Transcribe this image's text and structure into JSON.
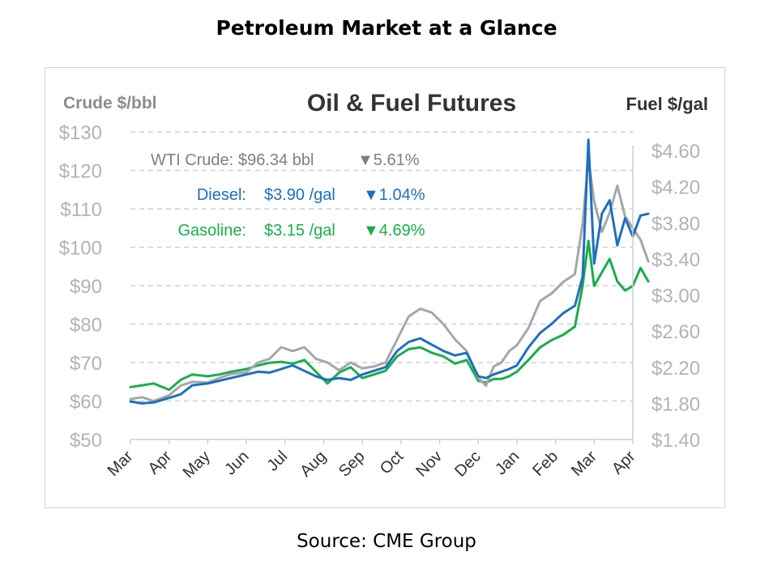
{
  "page_title": "Petroleum Market at a Glance",
  "source": "Source: CME Group",
  "colors": {
    "crude": "#a6a6a6",
    "diesel": "#1f6fbf",
    "gasoline": "#1aad4b",
    "grid": "#cfcfcf",
    "axis_text": "#b3b3b3",
    "left_label": "#8c8c8c",
    "title": "#333333"
  },
  "chart_data": {
    "type": "line",
    "title": "Oil & Fuel Futures",
    "ylabel_left": "Crude $/bbl",
    "ylabel_right": "Fuel $/gal",
    "x_ticks": [
      "Mar",
      "Apr",
      "May",
      "Jun",
      "Jul",
      "Aug",
      "Sep",
      "Oct",
      "Nov",
      "Dec",
      "Jan",
      "Feb",
      "Mar",
      "Apr"
    ],
    "y_left_ticks": [
      "$130",
      "$120",
      "$110",
      "$100",
      "$90",
      "$80",
      "$70",
      "$60",
      "$50"
    ],
    "y_right_ticks": [
      "$4.60",
      "$4.20",
      "$3.80",
      "$3.40",
      "$3.00",
      "$2.60",
      "$2.20",
      "$1.80",
      "$1.40"
    ],
    "ylim_left": [
      50,
      130
    ],
    "ylim_right": [
      1.4,
      4.6
    ],
    "grid": "horizontal-dashed",
    "annotations": [
      {
        "series": "crude",
        "label": "WTI Crude:",
        "value": "$96.34 bbl",
        "change": "▼5.61%"
      },
      {
        "series": "diesel",
        "label": "Diesel:",
        "value": "$3.90 /gal",
        "change": "▼1.04%"
      },
      {
        "series": "gasoline",
        "label": "Gasoline:",
        "value": "$3.15 /gal",
        "change": "▼4.69%"
      }
    ],
    "series": [
      {
        "key": "crude",
        "axis": "left",
        "points": [
          [
            0,
            60.5
          ],
          [
            0.3,
            61
          ],
          [
            0.6,
            60
          ],
          [
            1,
            61.5
          ],
          [
            1.3,
            64
          ],
          [
            1.6,
            65
          ],
          [
            2,
            64.8
          ],
          [
            2.3,
            66
          ],
          [
            2.6,
            67
          ],
          [
            3,
            67.5
          ],
          [
            3.3,
            70
          ],
          [
            3.6,
            71
          ],
          [
            3.9,
            74
          ],
          [
            4.2,
            73
          ],
          [
            4.5,
            74
          ],
          [
            4.8,
            71
          ],
          [
            5.1,
            70
          ],
          [
            5.4,
            68
          ],
          [
            5.7,
            70
          ],
          [
            6,
            68.5
          ],
          [
            6.3,
            69
          ],
          [
            6.6,
            70
          ],
          [
            6.9,
            76
          ],
          [
            7.2,
            82
          ],
          [
            7.5,
            84
          ],
          [
            7.8,
            83
          ],
          [
            8.1,
            80
          ],
          [
            8.4,
            76
          ],
          [
            8.7,
            73
          ],
          [
            9,
            66
          ],
          [
            9.2,
            64
          ],
          [
            9.4,
            69
          ],
          [
            9.6,
            70
          ],
          [
            9.8,
            73
          ],
          [
            10,
            74.5
          ],
          [
            10.3,
            79
          ],
          [
            10.6,
            86
          ],
          [
            10.9,
            88
          ],
          [
            11.2,
            91
          ],
          [
            11.5,
            93
          ],
          [
            11.7,
            106
          ],
          [
            11.85,
            123
          ],
          [
            12,
            112
          ],
          [
            12.2,
            104
          ],
          [
            12.4,
            109
          ],
          [
            12.6,
            116
          ],
          [
            12.8,
            108
          ],
          [
            13,
            105
          ],
          [
            13.2,
            102
          ],
          [
            13.4,
            96.3
          ]
        ]
      },
      {
        "key": "diesel",
        "axis": "right",
        "points": [
          [
            0,
            1.82
          ],
          [
            0.3,
            1.8
          ],
          [
            0.6,
            1.81
          ],
          [
            1,
            1.86
          ],
          [
            1.3,
            1.9
          ],
          [
            1.6,
            2.0
          ],
          [
            2,
            2.02
          ],
          [
            2.3,
            2.05
          ],
          [
            2.6,
            2.08
          ],
          [
            3,
            2.12
          ],
          [
            3.3,
            2.15
          ],
          [
            3.6,
            2.14
          ],
          [
            3.9,
            2.18
          ],
          [
            4.2,
            2.22
          ],
          [
            4.5,
            2.16
          ],
          [
            4.8,
            2.1
          ],
          [
            5.1,
            2.06
          ],
          [
            5.4,
            2.08
          ],
          [
            5.7,
            2.06
          ],
          [
            6,
            2.12
          ],
          [
            6.3,
            2.16
          ],
          [
            6.6,
            2.2
          ],
          [
            6.9,
            2.38
          ],
          [
            7.2,
            2.48
          ],
          [
            7.5,
            2.52
          ],
          [
            7.8,
            2.45
          ],
          [
            8.1,
            2.38
          ],
          [
            8.4,
            2.33
          ],
          [
            8.7,
            2.36
          ],
          [
            9,
            2.1
          ],
          [
            9.2,
            2.08
          ],
          [
            9.4,
            2.12
          ],
          [
            9.6,
            2.15
          ],
          [
            9.8,
            2.18
          ],
          [
            10,
            2.22
          ],
          [
            10.3,
            2.42
          ],
          [
            10.6,
            2.58
          ],
          [
            10.9,
            2.68
          ],
          [
            11.2,
            2.8
          ],
          [
            11.5,
            2.88
          ],
          [
            11.7,
            3.2
          ],
          [
            11.85,
            4.72
          ],
          [
            12,
            3.35
          ],
          [
            12.2,
            3.9
          ],
          [
            12.4,
            4.05
          ],
          [
            12.6,
            3.55
          ],
          [
            12.8,
            3.85
          ],
          [
            13,
            3.65
          ],
          [
            13.2,
            3.88
          ],
          [
            13.4,
            3.9
          ]
        ]
      },
      {
        "key": "gasoline",
        "axis": "right",
        "points": [
          [
            0,
            1.98
          ],
          [
            0.3,
            2.0
          ],
          [
            0.6,
            2.02
          ],
          [
            1,
            1.95
          ],
          [
            1.3,
            2.06
          ],
          [
            1.6,
            2.12
          ],
          [
            2,
            2.1
          ],
          [
            2.3,
            2.12
          ],
          [
            2.6,
            2.15
          ],
          [
            3,
            2.18
          ],
          [
            3.3,
            2.22
          ],
          [
            3.6,
            2.25
          ],
          [
            3.9,
            2.26
          ],
          [
            4.2,
            2.24
          ],
          [
            4.5,
            2.28
          ],
          [
            4.8,
            2.15
          ],
          [
            5.1,
            2.02
          ],
          [
            5.4,
            2.14
          ],
          [
            5.7,
            2.2
          ],
          [
            6,
            2.08
          ],
          [
            6.3,
            2.12
          ],
          [
            6.6,
            2.16
          ],
          [
            6.9,
            2.32
          ],
          [
            7.2,
            2.4
          ],
          [
            7.5,
            2.42
          ],
          [
            7.8,
            2.36
          ],
          [
            8.1,
            2.32
          ],
          [
            8.4,
            2.24
          ],
          [
            8.7,
            2.28
          ],
          [
            9,
            2.05
          ],
          [
            9.2,
            2.03
          ],
          [
            9.4,
            2.07
          ],
          [
            9.6,
            2.07
          ],
          [
            9.8,
            2.1
          ],
          [
            10,
            2.15
          ],
          [
            10.3,
            2.28
          ],
          [
            10.6,
            2.42
          ],
          [
            10.9,
            2.5
          ],
          [
            11.2,
            2.56
          ],
          [
            11.5,
            2.65
          ],
          [
            11.7,
            3.1
          ],
          [
            11.85,
            3.6
          ],
          [
            12,
            3.1
          ],
          [
            12.2,
            3.25
          ],
          [
            12.4,
            3.4
          ],
          [
            12.6,
            3.15
          ],
          [
            12.8,
            3.05
          ],
          [
            13,
            3.1
          ],
          [
            13.2,
            3.3
          ],
          [
            13.4,
            3.15
          ]
        ]
      }
    ]
  }
}
